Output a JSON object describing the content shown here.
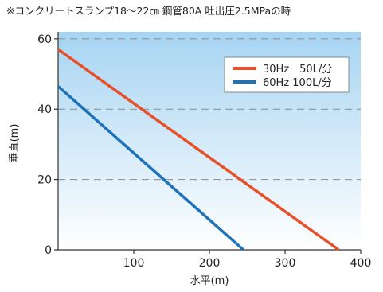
{
  "chart_data": {
    "type": "line",
    "title": "※コンクリートスランプ18〜22㎝ 鋼管80A 吐出圧2.5MPaの時",
    "xlabel": "水平(m)",
    "ylabel": "垂直(m)",
    "xlim": [
      0,
      400
    ],
    "ylim": [
      0,
      62
    ],
    "xticks": [
      100,
      200,
      300,
      400
    ],
    "yticks": [
      0,
      20,
      40,
      60
    ],
    "grid": "horizontal dashed",
    "legend": "top-right",
    "series": [
      {
        "name": "30Hz　50L/分",
        "color": "#E8502A",
        "x": [
          0,
          371
        ],
        "y": [
          57,
          0
        ]
      },
      {
        "name": "60Hz 100L/分",
        "color": "#1E72B8",
        "x": [
          0,
          245
        ],
        "y": [
          46.5,
          0
        ]
      }
    ]
  }
}
